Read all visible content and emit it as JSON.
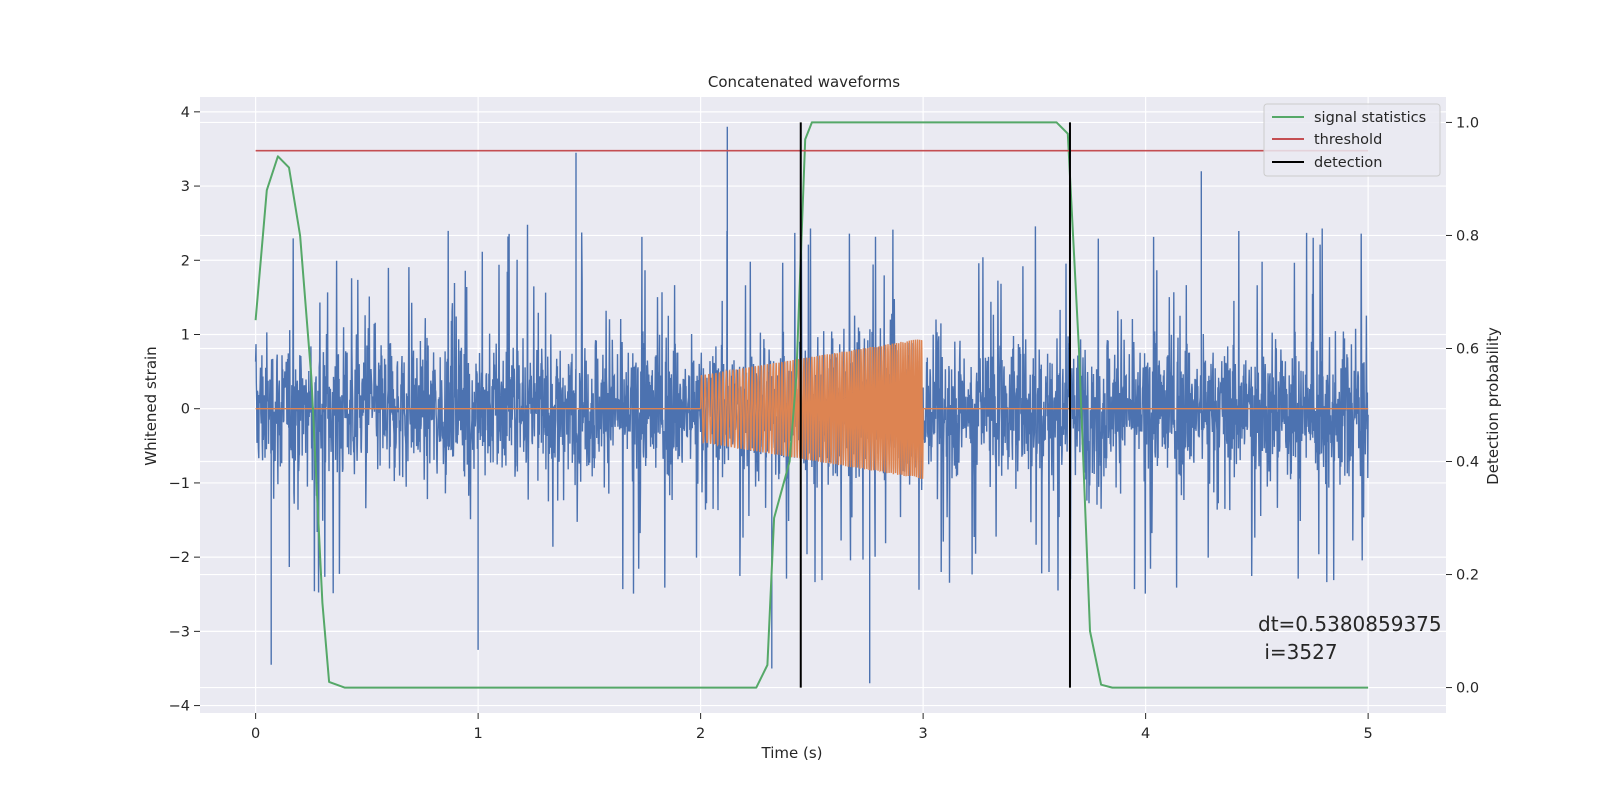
{
  "chart_data": {
    "type": "line",
    "title": "Concatenated waveforms",
    "xlabel": "Time (s)",
    "ylabel": "Whitened strain",
    "y2label": "Detection probability",
    "xlim": [
      -0.25,
      5.35
    ],
    "ylim": [
      -4.1,
      4.2
    ],
    "y2lim": [
      -0.045,
      1.045
    ],
    "x_ticks": [
      0,
      1,
      2,
      3,
      4,
      5
    ],
    "y_ticks": [
      -4,
      -3,
      -2,
      -1,
      0,
      1,
      2,
      3,
      4
    ],
    "y2_ticks": [
      0.0,
      0.2,
      0.4,
      0.6,
      0.8,
      1.0
    ],
    "x_tick_labels": [
      "0",
      "1",
      "2",
      "3",
      "4",
      "5"
    ],
    "y_tick_labels": [
      "−4",
      "−3",
      "−2",
      "−1",
      "0",
      "1",
      "2",
      "3",
      "4"
    ],
    "y2_tick_labels": [
      "0.0",
      "0.2",
      "0.4",
      "0.6",
      "0.8",
      "1.0"
    ],
    "grid": true,
    "legend_position": "top-right",
    "colors": {
      "noise": "#4c72b0",
      "injected_signal": "#dd8452",
      "signal_statistics": "#55a868",
      "threshold": "#c44e52",
      "detection": "#000000",
      "axes_background": "#eaeaf2",
      "grid": "#ffffff"
    },
    "noise_series": {
      "axis": "left",
      "x_range": [
        0,
        5
      ],
      "typical_amplitude": [
        -1.9,
        2.2
      ],
      "peaks": [
        {
          "x": 1.44,
          "y": 3.45
        },
        {
          "x": 2.12,
          "y": 3.8
        },
        {
          "x": 4.25,
          "y": 3.2
        },
        {
          "x": 0.07,
          "y": -3.45
        },
        {
          "x": 2.76,
          "y": -3.7
        },
        {
          "x": 2.32,
          "y": -3.5
        },
        {
          "x": 1.0,
          "y": -3.25
        }
      ]
    },
    "injected_signal_series": {
      "axis": "left",
      "x_range": [
        0,
        5
      ],
      "chirp_start": 2.0,
      "chirp_end": 3.0,
      "amplitude_start": 0.45,
      "amplitude_end": 0.95
    },
    "signal_statistics_series": {
      "axis": "right",
      "points": [
        [
          0,
          0.65
        ],
        [
          0.05,
          0.88
        ],
        [
          0.1,
          0.94
        ],
        [
          0.15,
          0.92
        ],
        [
          0.2,
          0.8
        ],
        [
          0.25,
          0.55
        ],
        [
          0.3,
          0.15
        ],
        [
          0.33,
          0.01
        ],
        [
          0.4,
          0.0
        ],
        [
          2.25,
          0.0
        ],
        [
          2.3,
          0.04
        ],
        [
          2.33,
          0.3
        ],
        [
          2.4,
          0.4
        ],
        [
          2.43,
          0.55
        ],
        [
          2.47,
          0.97
        ],
        [
          2.5,
          1.0
        ],
        [
          3.6,
          1.0
        ],
        [
          3.65,
          0.98
        ],
        [
          3.7,
          0.6
        ],
        [
          3.75,
          0.1
        ],
        [
          3.8,
          0.005
        ],
        [
          3.85,
          0.0
        ],
        [
          5.0,
          0.0
        ]
      ]
    },
    "threshold_value": 0.95,
    "detection_times": [
      2.45,
      3.66
    ],
    "legend": [
      {
        "label": "signal statistics",
        "key": "signal_statistics"
      },
      {
        "label": "threshold",
        "key": "threshold"
      },
      {
        "label": "detection",
        "key": "detection"
      }
    ],
    "annotation": {
      "line1": "dt=0.5380859375",
      "line2": " i=3527"
    }
  }
}
